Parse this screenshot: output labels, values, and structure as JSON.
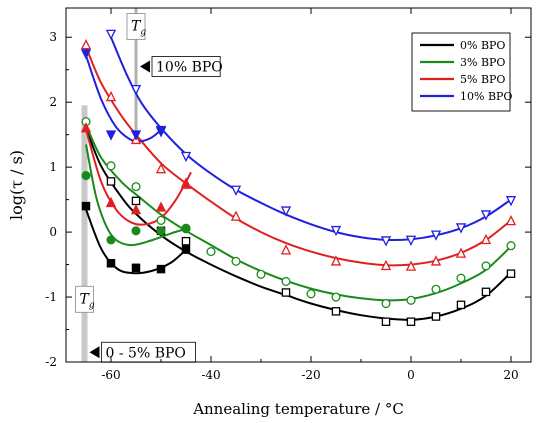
{
  "chart_data": {
    "type": "scatter",
    "xlabel": "Annealing temperature / °C",
    "ylabel": "log(τ / s)",
    "xlim": [
      -69,
      24
    ],
    "ylim": [
      -2,
      3.45
    ],
    "xticks": [
      -60,
      -40,
      -20,
      0,
      20
    ],
    "yticks": [
      -2,
      -1,
      0,
      1,
      2,
      3
    ],
    "xtick_labels": [
      "-60",
      "-40",
      "-20",
      "0",
      "20"
    ],
    "ytick_labels": [
      "-2",
      "-1",
      "0",
      "1",
      "2",
      "3"
    ],
    "legend": {
      "placement": "top-right"
    },
    "tg_markers": [
      {
        "label": "T",
        "sub": "g",
        "x": -55,
        "y_from": 1.45,
        "y_to": 3.45,
        "color": "#b0b0b0",
        "label_y": 3.15,
        "note": "10% BPO",
        "note_y": 2.55
      },
      {
        "label": "T",
        "sub": "g",
        "x": -65.3,
        "y_from": -2.0,
        "y_to": 1.95,
        "color": "#c8c8c8",
        "label_y": -1.05,
        "note": "0 - 5% BPO",
        "note_y": -1.85
      }
    ],
    "series": [
      {
        "name": "0% BPO",
        "color": "#000000",
        "open_marker": "square",
        "filled_marker": "square",
        "open_points": [
          [
            -60,
            0.78
          ],
          [
            -55,
            0.48
          ],
          [
            -50,
            0.02
          ],
          [
            -45,
            -0.14
          ],
          [
            -25,
            -0.93
          ],
          [
            -15,
            -1.22
          ],
          [
            -5,
            -1.38
          ],
          [
            0,
            -1.38
          ],
          [
            5,
            -1.3
          ],
          [
            10,
            -1.12
          ],
          [
            15,
            -0.92
          ],
          [
            20,
            -0.64
          ]
        ],
        "filled_points": [
          [
            -65,
            0.4
          ],
          [
            -60,
            -0.48
          ],
          [
            -55,
            -0.55
          ],
          [
            -50,
            -0.57
          ],
          [
            -45,
            -0.27
          ]
        ],
        "curve_main": [
          [
            -65,
            1.6
          ],
          [
            -62,
            1.02
          ],
          [
            -58,
            0.55
          ],
          [
            -55,
            0.28
          ],
          [
            -50,
            -0.05
          ],
          [
            -45,
            -0.3
          ],
          [
            -40,
            -0.5
          ],
          [
            -35,
            -0.68
          ],
          [
            -30,
            -0.84
          ],
          [
            -25,
            -0.97
          ],
          [
            -20,
            -1.1
          ],
          [
            -15,
            -1.2
          ],
          [
            -10,
            -1.28
          ],
          [
            -5,
            -1.33
          ],
          [
            0,
            -1.35
          ],
          [
            5,
            -1.3
          ],
          [
            10,
            -1.18
          ],
          [
            15,
            -0.98
          ],
          [
            20,
            -0.62
          ]
        ],
        "curve_low": [
          [
            -65,
            0.35
          ],
          [
            -62,
            -0.25
          ],
          [
            -59,
            -0.55
          ],
          [
            -56,
            -0.63
          ],
          [
            -52,
            -0.6
          ],
          [
            -48,
            -0.47
          ],
          [
            -45,
            -0.27
          ]
        ]
      },
      {
        "name": "3% BPO",
        "color": "#1a8a1a",
        "open_marker": "circle",
        "filled_marker": "circle",
        "open_points": [
          [
            -65,
            1.7
          ],
          [
            -60,
            1.02
          ],
          [
            -55,
            0.7
          ],
          [
            -50,
            0.18
          ],
          [
            -45,
            0.05
          ],
          [
            -40,
            -0.3
          ],
          [
            -35,
            -0.45
          ],
          [
            -30,
            -0.65
          ],
          [
            -25,
            -0.76
          ],
          [
            -20,
            -0.95
          ],
          [
            -15,
            -1.0
          ],
          [
            -5,
            -1.1
          ],
          [
            0,
            -1.05
          ],
          [
            5,
            -0.88
          ],
          [
            10,
            -0.71
          ],
          [
            15,
            -0.52
          ],
          [
            20,
            -0.21
          ]
        ],
        "filled_points": [
          [
            -65,
            0.87
          ],
          [
            -60,
            -0.12
          ],
          [
            -55,
            0.02
          ],
          [
            -50,
            0.02
          ],
          [
            -45,
            0.06
          ]
        ],
        "curve_main": [
          [
            -65,
            1.65
          ],
          [
            -62,
            1.15
          ],
          [
            -58,
            0.78
          ],
          [
            -55,
            0.58
          ],
          [
            -50,
            0.27
          ],
          [
            -45,
            0.02
          ],
          [
            -40,
            -0.2
          ],
          [
            -35,
            -0.42
          ],
          [
            -30,
            -0.6
          ],
          [
            -25,
            -0.75
          ],
          [
            -20,
            -0.87
          ],
          [
            -15,
            -0.96
          ],
          [
            -10,
            -1.02
          ],
          [
            -5,
            -1.05
          ],
          [
            0,
            -1.03
          ],
          [
            5,
            -0.94
          ],
          [
            10,
            -0.79
          ],
          [
            15,
            -0.58
          ],
          [
            20,
            -0.22
          ]
        ],
        "curve_low": [
          [
            -65,
            1.35
          ],
          [
            -63,
            0.55
          ],
          [
            -61,
            0.1
          ],
          [
            -59,
            -0.12
          ],
          [
            -56,
            -0.2
          ],
          [
            -52,
            -0.13
          ],
          [
            -48,
            -0.02
          ],
          [
            -45,
            0.05
          ]
        ]
      },
      {
        "name": "5% BPO",
        "color": "#e02020",
        "open_marker": "triangle-up",
        "filled_marker": "triangle-up",
        "open_points": [
          [
            -65,
            2.88
          ],
          [
            -60,
            2.08
          ],
          [
            -55,
            1.42
          ],
          [
            -50,
            0.97
          ],
          [
            -45,
            0.73
          ],
          [
            -35,
            0.24
          ],
          [
            -25,
            -0.28
          ],
          [
            -15,
            -0.45
          ],
          [
            -5,
            -0.52
          ],
          [
            0,
            -0.53
          ],
          [
            5,
            -0.45
          ],
          [
            10,
            -0.33
          ],
          [
            15,
            -0.12
          ],
          [
            20,
            0.17
          ]
        ],
        "filled_points": [
          [
            -65,
            1.6
          ],
          [
            -60,
            0.45
          ],
          [
            -55,
            0.34
          ],
          [
            -50,
            0.38
          ],
          [
            -45,
            0.75
          ]
        ],
        "curve_main": [
          [
            -65,
            2.85
          ],
          [
            -62,
            2.3
          ],
          [
            -58,
            1.8
          ],
          [
            -55,
            1.5
          ],
          [
            -50,
            1.06
          ],
          [
            -45,
            0.75
          ],
          [
            -40,
            0.47
          ],
          [
            -35,
            0.21
          ],
          [
            -30,
            0.0
          ],
          [
            -25,
            -0.17
          ],
          [
            -20,
            -0.3
          ],
          [
            -15,
            -0.4
          ],
          [
            -10,
            -0.47
          ],
          [
            -5,
            -0.51
          ],
          [
            0,
            -0.5
          ],
          [
            5,
            -0.44
          ],
          [
            10,
            -0.32
          ],
          [
            15,
            -0.12
          ],
          [
            20,
            0.18
          ]
        ],
        "curve_low": [
          [
            -65,
            1.58
          ],
          [
            -62,
            0.78
          ],
          [
            -59,
            0.35
          ],
          [
            -56,
            0.15
          ],
          [
            -53,
            0.12
          ],
          [
            -50,
            0.22
          ],
          [
            -47,
            0.5
          ],
          [
            -44,
            0.92
          ]
        ]
      },
      {
        "name": "10% BPO",
        "color": "#2020e0",
        "open_marker": "triangle-down",
        "filled_marker": "triangle-down",
        "open_points": [
          [
            -60,
            3.05
          ],
          [
            -55,
            2.2
          ],
          [
            -50,
            1.55
          ],
          [
            -45,
            1.17
          ],
          [
            -35,
            0.65
          ],
          [
            -25,
            0.33
          ],
          [
            -15,
            0.03
          ],
          [
            -5,
            -0.13
          ],
          [
            0,
            -0.12
          ],
          [
            5,
            -0.04
          ],
          [
            10,
            0.07
          ],
          [
            15,
            0.27
          ],
          [
            20,
            0.49
          ]
        ],
        "filled_points": [
          [
            -65,
            2.75
          ],
          [
            -60,
            1.5
          ],
          [
            -55,
            1.5
          ],
          [
            -50,
            1.57
          ]
        ],
        "curve_main": [
          [
            -60,
            3.0
          ],
          [
            -57,
            2.45
          ],
          [
            -54,
            2.0
          ],
          [
            -50,
            1.6
          ],
          [
            -45,
            1.2
          ],
          [
            -40,
            0.9
          ],
          [
            -35,
            0.65
          ],
          [
            -30,
            0.45
          ],
          [
            -25,
            0.27
          ],
          [
            -20,
            0.12
          ],
          [
            -15,
            0.0
          ],
          [
            -10,
            -0.08
          ],
          [
            -5,
            -0.12
          ],
          [
            0,
            -0.11
          ],
          [
            5,
            -0.05
          ],
          [
            10,
            0.06
          ],
          [
            15,
            0.24
          ],
          [
            20,
            0.5
          ]
        ],
        "curve_low": [
          [
            -65,
            2.72
          ],
          [
            -62,
            2.05
          ],
          [
            -59,
            1.62
          ],
          [
            -56,
            1.42
          ],
          [
            -54,
            1.4
          ],
          [
            -52,
            1.45
          ],
          [
            -50,
            1.57
          ]
        ]
      }
    ]
  }
}
